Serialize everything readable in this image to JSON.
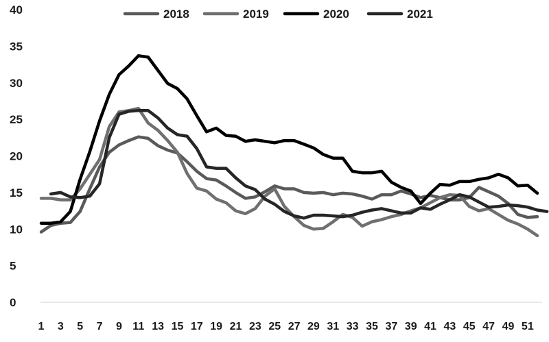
{
  "chart_data": {
    "type": "line",
    "title": "",
    "xlabel": "",
    "ylabel": "",
    "ylim": [
      0,
      40
    ],
    "yticks": [
      0,
      5,
      10,
      15,
      20,
      25,
      30,
      35,
      40
    ],
    "xlim": [
      1,
      52
    ],
    "xtick_labels": [
      "1",
      "3",
      "5",
      "7",
      "9",
      "11",
      "13",
      "15",
      "17",
      "19",
      "21",
      "23",
      "25",
      "27",
      "29",
      "31",
      "33",
      "35",
      "37",
      "39",
      "41",
      "43",
      "45",
      "47",
      "49",
      "51"
    ],
    "grid": false,
    "legend_position": "top",
    "series": [
      {
        "name": "2018",
        "color": "#5a5a5a",
        "start_week": 1,
        "values": [
          9.6,
          10.5,
          10.8,
          10.9,
          12.4,
          15.5,
          18.5,
          20.5,
          21.5,
          22.1,
          22.6,
          22.4,
          21.4,
          20.8,
          20.4,
          19.2,
          17.9,
          16.9,
          16.7,
          15.9,
          15.0,
          14.2,
          14.4,
          15.1,
          15.9,
          15.5,
          15.5,
          15.0,
          14.9,
          15.0,
          14.7,
          14.9,
          14.8,
          14.5,
          14.1,
          14.7,
          14.7,
          15.2,
          14.8,
          14.3,
          14.6,
          14.3,
          14.0,
          14.0,
          14.3,
          15.7,
          15.1,
          14.5,
          13.5,
          12.0,
          11.6,
          11.7
        ]
      },
      {
        "name": "2019",
        "color": "#707070",
        "start_week": 1,
        "values": [
          14.2,
          14.2,
          14.0,
          14.0,
          15.5,
          17.5,
          19.5,
          24.0,
          26.0,
          26.2,
          26.5,
          24.5,
          23.5,
          22.1,
          20.5,
          17.6,
          15.6,
          15.2,
          14.1,
          13.6,
          12.5,
          12.1,
          12.8,
          14.5,
          15.5,
          13.1,
          11.7,
          10.5,
          10.0,
          10.1,
          11.0,
          12.0,
          11.6,
          10.4,
          11.0,
          11.3,
          11.7,
          12.0,
          12.5,
          12.9,
          13.6,
          14.3,
          14.7,
          14.6,
          13.1,
          12.5,
          12.8,
          12.0,
          11.2,
          10.7,
          10.0,
          9.1
        ]
      },
      {
        "name": "2020",
        "color": "#000000",
        "start_week": 1,
        "values": [
          10.8,
          10.8,
          11.0,
          12.4,
          16.8,
          20.6,
          24.8,
          28.4,
          31.1,
          32.3,
          33.7,
          33.5,
          31.7,
          29.9,
          29.2,
          27.8,
          25.5,
          23.3,
          23.8,
          22.8,
          22.7,
          22.0,
          22.2,
          22.0,
          21.8,
          22.1,
          22.1,
          21.6,
          21.1,
          20.2,
          19.7,
          19.7,
          17.9,
          17.7,
          17.7,
          17.9,
          16.4,
          15.7,
          15.2,
          13.5,
          14.9,
          16.1,
          16.0,
          16.5,
          16.5,
          16.8,
          17.0,
          17.5,
          17.0,
          15.9,
          16.0,
          14.9
        ]
      },
      {
        "name": "2021",
        "color": "#262626",
        "start_week": 2,
        "values": [
          14.8,
          15.0,
          14.4,
          14.3,
          14.5,
          16.2,
          22.5,
          25.7,
          26.1,
          26.2,
          26.2,
          25.2,
          23.8,
          22.9,
          22.7,
          21.0,
          18.5,
          18.3,
          18.3,
          17.0,
          15.9,
          15.4,
          14.1,
          13.4,
          12.4,
          11.8,
          11.5,
          11.9,
          11.9,
          11.8,
          11.7,
          11.9,
          12.3,
          12.6,
          12.8,
          12.5,
          12.2,
          12.2,
          12.9,
          12.7,
          13.4,
          14.0,
          14.7,
          14.4,
          13.7,
          13.0,
          13.1,
          13.3,
          13.2,
          13.0,
          12.6,
          12.4
        ]
      }
    ]
  }
}
